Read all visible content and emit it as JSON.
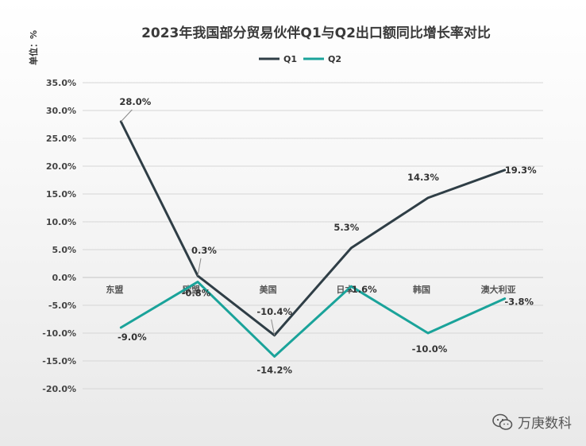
{
  "chart_data": {
    "type": "line",
    "title": "2023年我国部分贸易伙伴Q1与Q2出口额同比增长率对比",
    "unit_label": "单位：%",
    "categories": [
      "东盟",
      "欧盟",
      "美国",
      "日本",
      "韩国",
      "澳大利亚"
    ],
    "series": [
      {
        "name": "Q1",
        "color": "#2f3e46",
        "values": [
          28.0,
          0.3,
          -10.4,
          5.3,
          14.3,
          19.3
        ],
        "labels": [
          "28.0%",
          "0.3%",
          "-10.4%",
          "5.3%",
          "14.3%",
          "19.3%"
        ]
      },
      {
        "name": "Q2",
        "color": "#1aa39a",
        "values": [
          -9.0,
          -0.8,
          -14.2,
          -1.6,
          -10.0,
          -3.8
        ],
        "labels": [
          "-9.0%",
          "-0.8%",
          "-14.2%",
          "-1.6%",
          "-10.0%",
          "-3.8%"
        ]
      }
    ],
    "yticks": [
      35,
      30,
      25,
      20,
      15,
      10,
      5,
      0,
      -5,
      -10,
      -15,
      -20
    ],
    "ytick_labels": [
      "35.0%",
      "30.0%",
      "25.0%",
      "20.0%",
      "15.0%",
      "10.0%",
      "5.0%",
      "0.0%",
      "-5.0%",
      "-10.0%",
      "-15.0%",
      "-20.0%"
    ],
    "ylim": [
      -20,
      35
    ],
    "grid": true,
    "legend_position": "top-center"
  },
  "watermark": {
    "text": "万庚数科",
    "icon": "wechat-icon"
  }
}
